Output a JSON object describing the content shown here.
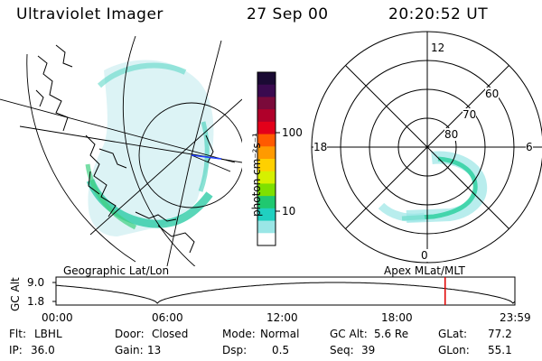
{
  "header": {
    "instrument": "Ultraviolet Imager",
    "date": "27 Sep 00",
    "time": "20:20:52 UT"
  },
  "colorbar": {
    "unit_label": "photon cm⁻²s⁻¹",
    "ticks": [
      "100",
      "10"
    ],
    "colors": [
      "#1a0a33",
      "#3a0a4f",
      "#7a0a3a",
      "#b0002a",
      "#e3001a",
      "#ff5a00",
      "#ff9a00",
      "#ffd000",
      "#d6f000",
      "#7ee000",
      "#20c870",
      "#20d0c0",
      "#9ae6e6",
      "#ffffff"
    ]
  },
  "left_panel": {
    "caption": "Geographic Lat/Lon"
  },
  "right_panel": {
    "caption": "Apex MLat/MLT",
    "mlt_labels": {
      "top": "12",
      "left": "18",
      "right": "6",
      "bottom": "0"
    },
    "lat_labels": [
      "60",
      "70",
      "80"
    ]
  },
  "timeline": {
    "axis_label": "GC Alt",
    "y_ticks": [
      "9.0",
      "1.8"
    ],
    "x_ticks": [
      "00:00",
      "06:00",
      "12:00",
      "18:00",
      "23:59"
    ],
    "current_time_hours": 20.35,
    "colors": {
      "marker": "#e00000"
    }
  },
  "info": {
    "flt_label": "Flt:",
    "flt_value": "LBHL",
    "ip_label": "IP:",
    "ip_value": "36.0",
    "door_label": "Door:",
    "door_value": "Closed",
    "gain_label": "Gain:",
    "gain_value": "13",
    "mode_label": "Mode:",
    "mode_value": "Normal",
    "dsp_label": "Dsp:",
    "dsp_value": "0.5",
    "gcalt_label": "GC Alt:",
    "gcalt_value": "5.6 Re",
    "seq_label": "Seq:",
    "seq_value": "39",
    "glat_label": "GLat:",
    "glat_value": "77.2",
    "glon_label": "GLon:",
    "glon_value": "55.1"
  }
}
